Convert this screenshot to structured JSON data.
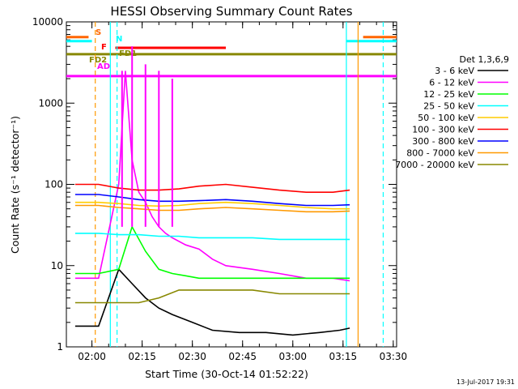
{
  "chart_data": {
    "type": "line",
    "title": "HESSI Observing Summary Count Rates",
    "xlabel": "Start Time (30-Oct-14 01:52:22)",
    "ylabel": "Count Rate (s⁻¹ detector⁻¹)",
    "ylog": true,
    "xlim": [
      "01:52:22",
      "03:31:00"
    ],
    "ylim": [
      1,
      10000
    ],
    "x_ticks": [
      "02:00",
      "02:15",
      "02:30",
      "02:45",
      "03:00",
      "03:15",
      "03:30"
    ],
    "y_ticks": [
      "1",
      "10",
      "100",
      "1000",
      "10000"
    ],
    "legend_title": "Det 1,3,6,9",
    "legend_position": "right",
    "series": [
      {
        "name": "3 - 6 keV",
        "color": "#000000",
        "x": [
          "01:55:00",
          "02:02:00",
          "02:08:00",
          "02:12:00",
          "02:16:00",
          "02:20:00",
          "02:24:00",
          "02:30:00",
          "02:36:00",
          "02:44:00",
          "02:52:00",
          "03:00:00",
          "03:08:00",
          "03:14:00",
          "03:17:00"
        ],
        "y": [
          1.8,
          1.8,
          9,
          6,
          4,
          3,
          2.5,
          2.0,
          1.6,
          1.5,
          1.5,
          1.4,
          1.5,
          1.6,
          1.7
        ]
      },
      {
        "name": "6 - 12 keV",
        "color": "#ff00ff",
        "x": [
          "01:55:00",
          "02:02:00",
          "02:08:00",
          "02:10:00",
          "02:12:00",
          "02:14:00",
          "02:16:00",
          "02:18:00",
          "02:20:00",
          "02:22:00",
          "02:24:00",
          "02:28:00",
          "02:32:00",
          "02:36:00",
          "02:40:00",
          "02:48:00",
          "02:56:00",
          "03:04:00",
          "03:12:00",
          "03:17:00"
        ],
        "y": [
          7,
          7,
          100,
          2500,
          200,
          80,
          60,
          40,
          30,
          25,
          22,
          18,
          16,
          12,
          10,
          9,
          8,
          7,
          7,
          6.5
        ]
      },
      {
        "name": "12 - 25 keV",
        "color": "#00ff00",
        "x": [
          "01:55:00",
          "02:02:00",
          "02:08:00",
          "02:12:00",
          "02:16:00",
          "02:20:00",
          "02:24:00",
          "02:28:00",
          "02:32:00",
          "02:40:00",
          "02:48:00",
          "02:56:00",
          "03:04:00",
          "03:12:00",
          "03:17:00"
        ],
        "y": [
          8,
          8,
          9,
          30,
          15,
          9,
          8,
          7.5,
          7,
          7,
          7,
          7,
          7,
          7,
          7
        ]
      },
      {
        "name": "25 - 50 keV",
        "color": "#00ffff",
        "x": [
          "01:55:00",
          "02:02:00",
          "02:08:00",
          "02:14:00",
          "02:20:00",
          "02:26:00",
          "02:32:00",
          "02:40:00",
          "02:48:00",
          "02:56:00",
          "03:04:00",
          "03:12:00",
          "03:17:00"
        ],
        "y": [
          25,
          25,
          24,
          24,
          23,
          23,
          22,
          22,
          22,
          21,
          21,
          21,
          21
        ]
      },
      {
        "name": "50 - 100 keV",
        "color": "#ffcc00",
        "x": [
          "01:55:00",
          "02:02:00",
          "02:08:00",
          "02:14:00",
          "02:20:00",
          "02:26:00",
          "02:32:00",
          "02:40:00",
          "02:48:00",
          "02:56:00",
          "03:04:00",
          "03:12:00",
          "03:17:00"
        ],
        "y": [
          60,
          60,
          58,
          55,
          54,
          55,
          58,
          60,
          58,
          55,
          52,
          50,
          50
        ]
      },
      {
        "name": "100 - 300 keV",
        "color": "#ff0000",
        "x": [
          "01:55:00",
          "02:02:00",
          "02:08:00",
          "02:14:00",
          "02:20:00",
          "02:26:00",
          "02:32:00",
          "02:40:00",
          "02:48:00",
          "02:56:00",
          "03:04:00",
          "03:12:00",
          "03:17:00"
        ],
        "y": [
          100,
          100,
          90,
          85,
          85,
          88,
          95,
          100,
          92,
          85,
          80,
          80,
          85
        ]
      },
      {
        "name": "300 - 800 keV",
        "color": "#0000ff",
        "x": [
          "01:55:00",
          "02:02:00",
          "02:08:00",
          "02:14:00",
          "02:20:00",
          "02:26:00",
          "02:32:00",
          "02:40:00",
          "02:48:00",
          "02:56:00",
          "03:04:00",
          "03:12:00",
          "03:17:00"
        ],
        "y": [
          75,
          75,
          70,
          65,
          62,
          62,
          63,
          65,
          62,
          58,
          55,
          55,
          56
        ]
      },
      {
        "name": "800 - 7000 keV",
        "color": "#ff9900",
        "x": [
          "01:55:00",
          "02:02:00",
          "02:08:00",
          "02:14:00",
          "02:20:00",
          "02:26:00",
          "02:32:00",
          "02:40:00",
          "02:48:00",
          "02:56:00",
          "03:04:00",
          "03:12:00",
          "03:17:00"
        ],
        "y": [
          55,
          55,
          52,
          50,
          48,
          48,
          50,
          52,
          50,
          48,
          46,
          46,
          47
        ]
      },
      {
        "name": "7000 - 20000 keV",
        "color": "#888800",
        "x": [
          "01:55:00",
          "02:02:00",
          "02:08:00",
          "02:14:00",
          "02:20:00",
          "02:26:00",
          "02:32:00",
          "02:40:00",
          "02:48:00",
          "02:56:00",
          "03:04:00",
          "03:12:00",
          "03:17:00"
        ],
        "y": [
          3.5,
          3.5,
          3.5,
          3.5,
          4,
          5,
          5,
          5,
          5,
          4.5,
          4.5,
          4.5,
          4.5
        ]
      }
    ],
    "annotations": [
      {
        "label": "S",
        "color": "#ff6600",
        "y": 6500,
        "segments": [
          [
            "01:52:22",
            "01:59:00"
          ],
          [
            "03:21:00",
            "03:31:00"
          ]
        ]
      },
      {
        "label": "N",
        "color": "#00ffff",
        "y": 5800,
        "segments": [
          [
            "01:52:22",
            "02:00:00"
          ],
          [
            "03:16:00",
            "03:31:00"
          ]
        ]
      },
      {
        "label": "F",
        "color": "#ff0000",
        "y": 4800,
        "segments": [
          [
            "02:07:00",
            "02:40:00"
          ]
        ]
      },
      {
        "label": "FD1",
        "color": "#888800",
        "y": 4000,
        "segments": [
          [
            "01:52:22",
            "03:31:00"
          ]
        ]
      },
      {
        "label": "FD2",
        "color": "#888800",
        "y": 3300,
        "segments": []
      },
      {
        "label": "AD",
        "color": "#ff00ff",
        "y": 2150,
        "segments": [
          [
            "01:52:22",
            "03:31:00"
          ]
        ]
      }
    ],
    "markers": [
      {
        "x": "02:01:00",
        "color": "#ff9900",
        "style": "dashed"
      },
      {
        "x": "02:05:30",
        "color": "#00ffff",
        "style": "solid"
      },
      {
        "x": "02:07:30",
        "color": "#00ffff",
        "style": "dashed"
      },
      {
        "x": "03:16:00",
        "color": "#00ffff",
        "style": "solid"
      },
      {
        "x": "03:19:30",
        "color": "#ff9900",
        "style": "solid"
      },
      {
        "x": "03:27:00",
        "color": "#00ffff",
        "style": "dashed"
      }
    ],
    "spikes": [
      {
        "x": "02:09:00",
        "color": "#ff00ff",
        "y": 2500
      },
      {
        "x": "02:12:00",
        "color": "#ff00ff",
        "y": 5000
      },
      {
        "x": "02:16:00",
        "color": "#ff00ff",
        "y": 3000
      },
      {
        "x": "02:20:00",
        "color": "#ff00ff",
        "y": 2500
      },
      {
        "x": "02:24:00",
        "color": "#ff00ff",
        "y": 2000
      }
    ],
    "footer_date": "13-Jul-2017 19:31"
  }
}
